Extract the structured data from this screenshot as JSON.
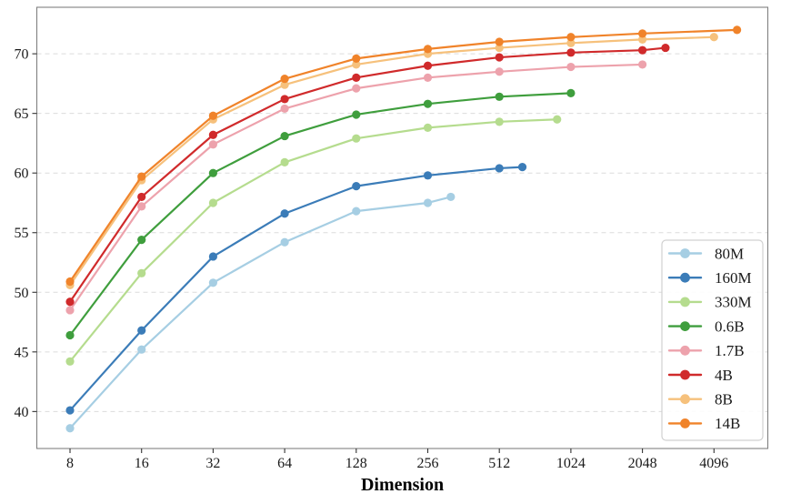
{
  "chart_data": {
    "type": "line",
    "title": "",
    "xlabel": "Dimension",
    "ylabel": "",
    "x_scale": "log2",
    "x_ticks": [
      8,
      16,
      32,
      64,
      128,
      256,
      512,
      1024,
      2048,
      4096
    ],
    "y_ticks": [
      40,
      45,
      50,
      55,
      60,
      65,
      70
    ],
    "xlim": [
      5.8,
      6900
    ],
    "ylim": [
      36.9,
      73.9
    ],
    "grid": "horizontal-dashed",
    "legend_position": "lower right",
    "colors": {
      "grid": "#dcdcdc",
      "spine": "#808080",
      "tick": "#333333",
      "text": "#1a1a1a",
      "legend_border": "#d0d0d0",
      "legend_bg": "#ffffff"
    },
    "series": [
      {
        "name": "80M",
        "color": "#a6cee3",
        "x": [
          8,
          16,
          32,
          64,
          128,
          256,
          320
        ],
        "y": [
          38.6,
          45.2,
          50.8,
          54.2,
          56.8,
          57.5,
          58.0
        ]
      },
      {
        "name": "160M",
        "color": "#3b7cb8",
        "x": [
          8,
          16,
          32,
          64,
          128,
          256,
          512,
          640
        ],
        "y": [
          40.1,
          46.8,
          53.0,
          56.6,
          58.9,
          59.8,
          60.4,
          60.5
        ]
      },
      {
        "name": "330M",
        "color": "#b5dc8e",
        "x": [
          8,
          16,
          32,
          64,
          128,
          256,
          512,
          896
        ],
        "y": [
          44.2,
          51.6,
          57.5,
          60.9,
          62.9,
          63.8,
          64.3,
          64.5
        ]
      },
      {
        "name": "0.6B",
        "color": "#3f9e3d",
        "x": [
          8,
          16,
          32,
          64,
          128,
          256,
          512,
          1024
        ],
        "y": [
          46.4,
          54.4,
          60.0,
          63.1,
          64.9,
          65.8,
          66.4,
          66.7
        ]
      },
      {
        "name": "1.7B",
        "color": "#eda2ac",
        "x": [
          8,
          16,
          32,
          64,
          128,
          256,
          512,
          1024,
          2048
        ],
        "y": [
          48.5,
          57.2,
          62.4,
          65.4,
          67.1,
          68.0,
          68.5,
          68.9,
          69.1
        ]
      },
      {
        "name": "4B",
        "color": "#d02a2b",
        "x": [
          8,
          16,
          32,
          64,
          128,
          256,
          512,
          1024,
          2048,
          2560
        ],
        "y": [
          49.2,
          58.0,
          63.2,
          66.2,
          68.0,
          69.0,
          69.7,
          70.1,
          70.3,
          70.5
        ]
      },
      {
        "name": "8B",
        "color": "#f6c17c",
        "x": [
          8,
          16,
          32,
          64,
          128,
          256,
          512,
          1024,
          2048,
          4096
        ],
        "y": [
          50.6,
          59.4,
          64.5,
          67.4,
          69.1,
          70.0,
          70.5,
          70.9,
          71.2,
          71.4
        ]
      },
      {
        "name": "14B",
        "color": "#f0832a",
        "x": [
          8,
          16,
          32,
          64,
          128,
          256,
          512,
          1024,
          2048,
          5120
        ],
        "y": [
          50.9,
          59.7,
          64.8,
          67.9,
          69.6,
          70.4,
          71.0,
          71.4,
          71.7,
          72.0
        ]
      }
    ]
  }
}
